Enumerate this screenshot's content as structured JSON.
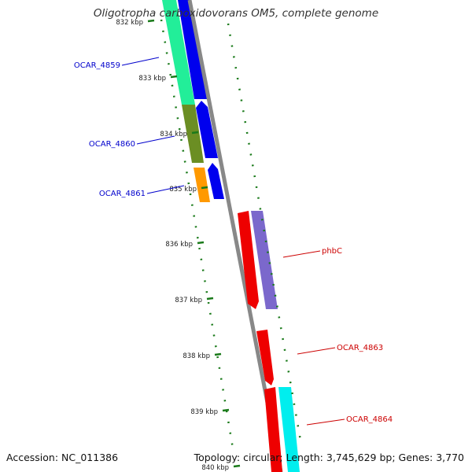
{
  "title": "Oligotropha carboxidovorans OM5, complete genome",
  "footer": {
    "accession": "Accession: NC_011386",
    "summary": "Topology: circular; Length: 3,745,629 bp; Genes: 3,770"
  },
  "ticks": [
    "832 kbp",
    "833 kbp",
    "834 kbp",
    "835 kbp",
    "836 kbp",
    "837 kbp",
    "838 kbp",
    "839 kbp",
    "840 kbp"
  ],
  "gene_labels": [
    {
      "text": "OCAR_4859",
      "color": "#0000cc"
    },
    {
      "text": "OCAR_4860",
      "color": "#0000cc"
    },
    {
      "text": "OCAR_4861",
      "color": "#0000cc"
    },
    {
      "text": "phbC",
      "color": "#cc0000"
    },
    {
      "text": "OCAR_4863",
      "color": "#cc0000"
    },
    {
      "text": "OCAR_4864",
      "color": "#cc0000"
    }
  ],
  "colors": {
    "forward_cds": "#0000ee",
    "reverse_cds": "#ee0000",
    "backbone": "#888888",
    "gc_dots": "#1a7a1a"
  }
}
